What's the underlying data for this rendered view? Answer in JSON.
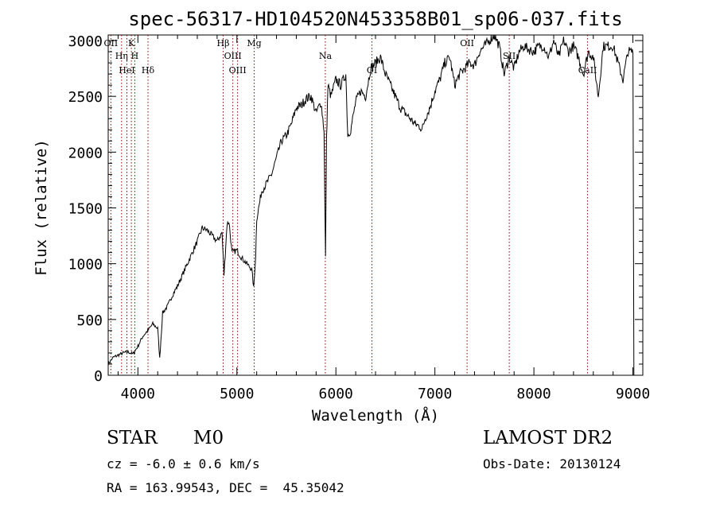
{
  "chart_data": {
    "type": "line",
    "title": "spec-56317-HD104520N453358B01_sp06-037.fits",
    "xlabel": "Wavelength (Å)",
    "ylabel": "Flux (relative)",
    "xlim": [
      3700,
      9100
    ],
    "ylim": [
      0,
      3050
    ],
    "xticks": [
      4000,
      5000,
      6000,
      7000,
      8000,
      9000
    ],
    "yticks": [
      0,
      500,
      1000,
      1500,
      2000,
      2500,
      3000
    ],
    "line_color": "#000000",
    "marker_color": "#8b0000",
    "grid": false,
    "series": [
      {
        "x": [
          3700,
          3750,
          3800,
          3850,
          3900,
          3950,
          4000,
          4050,
          4100,
          4150,
          4200,
          4220,
          4250,
          4300,
          4350,
          4400,
          4450,
          4500,
          4550,
          4600,
          4650,
          4700,
          4750,
          4800,
          4850,
          4870,
          4900,
          4920,
          4950,
          5000,
          5050,
          5100,
          5150,
          5170,
          5190,
          5200,
          5250,
          5300,
          5350,
          5400,
          5450,
          5500,
          5550,
          5600,
          5650,
          5700,
          5750,
          5800,
          5850,
          5880,
          5895,
          5905,
          5920,
          5950,
          6000,
          6050,
          6100,
          6120,
          6150,
          6200,
          6250,
          6300,
          6350,
          6400,
          6450,
          6500,
          6550,
          6600,
          6650,
          6700,
          6750,
          6800,
          6850,
          6870,
          6900,
          6950,
          7000,
          7050,
          7100,
          7150,
          7200,
          7250,
          7300,
          7350,
          7400,
          7450,
          7500,
          7550,
          7600,
          7650,
          7700,
          7750,
          7800,
          7850,
          7900,
          7950,
          8000,
          8050,
          8100,
          8150,
          8200,
          8250,
          8300,
          8350,
          8400,
          8450,
          8500,
          8550,
          8600,
          8650,
          8700,
          8750,
          8800,
          8850,
          8900,
          8950,
          9000,
          9010
        ],
        "y": [
          100,
          160,
          180,
          200,
          210,
          190,
          260,
          350,
          400,
          460,
          420,
          150,
          560,
          620,
          720,
          800,
          900,
          1000,
          1100,
          1200,
          1320,
          1300,
          1250,
          1200,
          1280,
          900,
          1350,
          1380,
          1100,
          1120,
          1050,
          1000,
          950,
          780,
          1080,
          1400,
          1650,
          1720,
          1800,
          1950,
          2100,
          2150,
          2250,
          2400,
          2420,
          2480,
          2500,
          2350,
          2450,
          2200,
          1050,
          2100,
          2600,
          2500,
          2650,
          2600,
          2700,
          2150,
          2200,
          2450,
          2550,
          2500,
          2750,
          2800,
          2850,
          2700,
          2600,
          2500,
          2400,
          2350,
          2300,
          2250,
          2230,
          2200,
          2300,
          2400,
          2550,
          2650,
          2800,
          2850,
          2600,
          2700,
          2750,
          2800,
          2780,
          2900,
          2950,
          3000,
          3050,
          2950,
          2700,
          2850,
          2750,
          2900,
          2950,
          2920,
          2900,
          2950,
          2950,
          2850,
          3000,
          2850,
          3000,
          2900,
          2950,
          2850,
          2700,
          2900,
          2850,
          2500,
          2950,
          2950,
          2950,
          2800,
          2650,
          2900,
          2900,
          0
        ]
      }
    ],
    "lines": [
      {
        "x": 3727,
        "label": "OII"
      },
      {
        "x": 3835,
        "label": "Hη"
      },
      {
        "x": 3889,
        "label": "HeI"
      },
      {
        "x": 3934,
        "label": "K"
      },
      {
        "x": 3969,
        "label": "H"
      },
      {
        "x": 4102,
        "label": "Hδ"
      },
      {
        "x": 4861,
        "label": "Hβ"
      },
      {
        "x": 4959,
        "label": "OIII"
      },
      {
        "x": 5007,
        "label": "OIII"
      },
      {
        "x": 5175,
        "label": "Mg"
      },
      {
        "x": 5893,
        "label": "Na"
      },
      {
        "x": 6364,
        "label": "OI"
      },
      {
        "x": 7325,
        "label": "OII"
      },
      {
        "x": 7751,
        "label": "SII"
      },
      {
        "x": 8542,
        "label": "CaII"
      }
    ]
  },
  "info": {
    "class_label": "STAR",
    "subclass": "M0",
    "survey": "LAMOST DR2",
    "cz_text": "cz = -6.0 ± 0.6 km/s",
    "obs_date": "Obs-Date: 20130124",
    "coords": "RA = 163.99543, DEC =  45.35042"
  }
}
